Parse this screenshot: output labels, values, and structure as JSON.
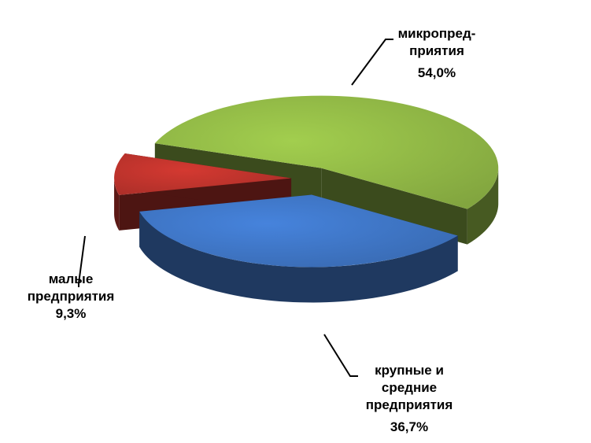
{
  "chart_data": {
    "type": "pie3d",
    "categories": [
      "микропред-\nприятия",
      "крупные и\nсредние\nпредприятия",
      "малые\nпредприятия"
    ],
    "values": [
      54.0,
      36.7,
      9.3
    ],
    "value_labels": [
      "54,0%",
      "36,7%",
      "9,3%"
    ],
    "colors": [
      "#8db344",
      "#3d72bf",
      "#b8322b"
    ]
  }
}
